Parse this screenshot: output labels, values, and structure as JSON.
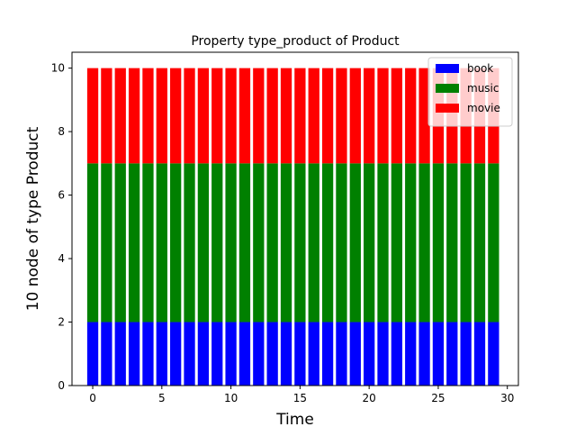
{
  "chart_data": {
    "type": "bar",
    "stacked": true,
    "title": "Property type_product of Product",
    "xlabel": "Time",
    "ylabel": "10 node of type Product",
    "xlim": [
      -1.5,
      30.8
    ],
    "ylim": [
      0,
      10.5
    ],
    "xticks": [
      0,
      5,
      10,
      15,
      20,
      25,
      30
    ],
    "yticks": [
      0,
      2,
      4,
      6,
      8,
      10
    ],
    "x": [
      0,
      1,
      2,
      3,
      4,
      5,
      6,
      7,
      8,
      9,
      10,
      11,
      12,
      13,
      14,
      15,
      16,
      17,
      18,
      19,
      20,
      21,
      22,
      23,
      24,
      25,
      26,
      27,
      28,
      29
    ],
    "series": [
      {
        "name": "book",
        "color": "#0000ff",
        "values": [
          2,
          2,
          2,
          2,
          2,
          2,
          2,
          2,
          2,
          2,
          2,
          2,
          2,
          2,
          2,
          2,
          2,
          2,
          2,
          2,
          2,
          2,
          2,
          2,
          2,
          2,
          2,
          2,
          2,
          2
        ]
      },
      {
        "name": "music",
        "color": "#008000",
        "values": [
          5,
          5,
          5,
          5,
          5,
          5,
          5,
          5,
          5,
          5,
          5,
          5,
          5,
          5,
          5,
          5,
          5,
          5,
          5,
          5,
          5,
          5,
          5,
          5,
          5,
          5,
          5,
          5,
          5,
          5
        ]
      },
      {
        "name": "movie",
        "color": "#ff0000",
        "values": [
          3,
          3,
          3,
          3,
          3,
          3,
          3,
          3,
          3,
          3,
          3,
          3,
          3,
          3,
          3,
          3,
          3,
          3,
          3,
          3,
          3,
          3,
          3,
          3,
          3,
          3,
          3,
          3,
          3,
          3
        ]
      }
    ],
    "grid": false,
    "legend_position": "top-right"
  }
}
